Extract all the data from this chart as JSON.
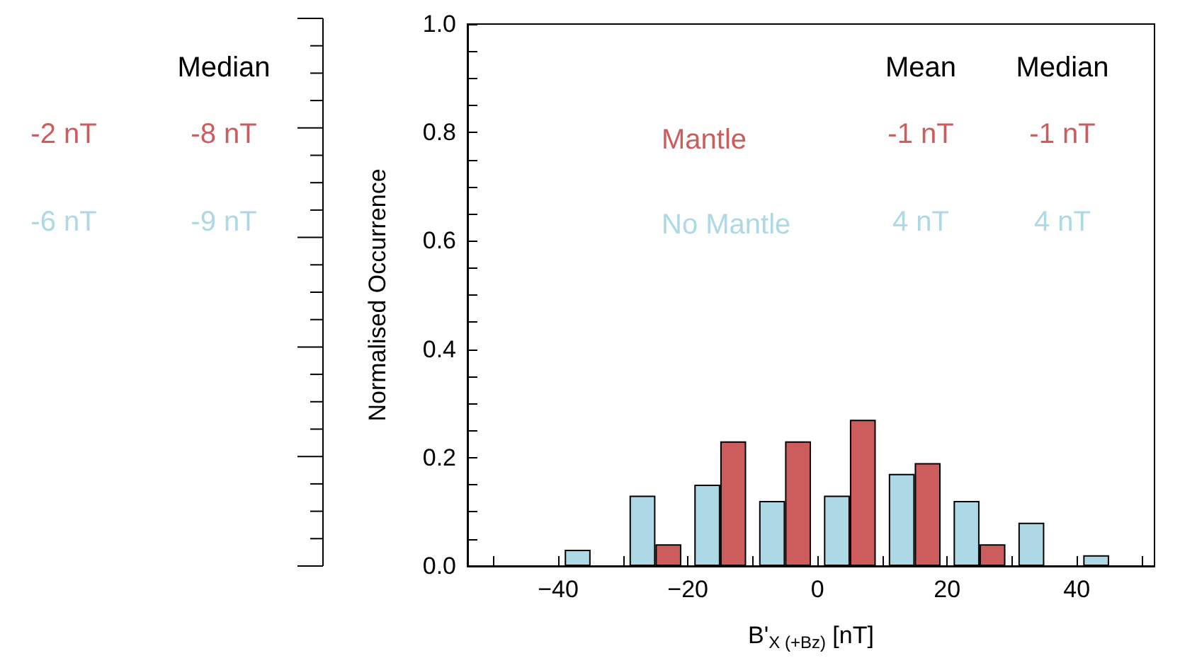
{
  "chart_data": [
    {
      "type": "other",
      "annotations": [
        "Median",
        "-2 nT",
        "-8 nT",
        "-6 nT",
        "-9 nT"
      ]
    },
    {
      "type": "bar",
      "xlabel": "B'$_{X (+Bz)}$ [nT]",
      "ylabel": "Normalised Occurrence",
      "x": [
        -35,
        -25,
        -15,
        -5,
        5,
        15,
        25,
        35,
        45
      ],
      "series": [
        {
          "name": "No Mantle",
          "color": "#add8e6",
          "values": [
            0.03,
            0.13,
            0.15,
            0.12,
            0.13,
            0.17,
            0.12,
            0.08,
            0.02
          ]
        },
        {
          "name": "Mantle",
          "color": "#cd5c5c",
          "values": [
            null,
            0.04,
            0.23,
            0.23,
            0.27,
            0.19,
            0.04,
            null,
            null
          ]
        }
      ],
      "xlim": [
        -54,
        52
      ],
      "xticks": [
        {
          "value": -50,
          "label": null
        },
        {
          "value": -40,
          "label": "−40"
        },
        {
          "value": -30,
          "label": null
        },
        {
          "value": -20,
          "label": "−20"
        },
        {
          "value": -10,
          "label": null
        },
        0,
        {
          "value": 10,
          "label": null
        },
        20,
        {
          "value": 30,
          "label": null
        },
        40,
        {
          "value": 50,
          "label": null
        }
      ],
      "ylim": [
        0,
        1
      ],
      "yticks": [
        {
          "value": 0,
          "label": "0.0"
        },
        {
          "value": 0.05,
          "label": null
        },
        {
          "value": 0.1,
          "label": null
        },
        {
          "value": 0.15,
          "label": null
        },
        {
          "value": 0.2,
          "label": "0.2"
        },
        {
          "value": 0.25,
          "label": null
        },
        {
          "value": 0.3,
          "label": null
        },
        {
          "value": 0.35,
          "label": null
        },
        {
          "value": 0.4,
          "label": "0.4"
        },
        {
          "value": 0.45,
          "label": null
        },
        {
          "value": 0.5,
          "label": null
        },
        {
          "value": 0.55,
          "label": null
        },
        {
          "value": 0.6,
          "label": "0.6"
        },
        {
          "value": 0.65,
          "label": null
        },
        {
          "value": 0.7,
          "label": null
        },
        {
          "value": 0.75,
          "label": null
        },
        {
          "value": 0.8,
          "label": "0.8"
        },
        {
          "value": 0.85,
          "label": null
        },
        {
          "value": 0.9,
          "label": null
        },
        {
          "value": 0.95,
          "label": null
        },
        {
          "value": 1,
          "label": "1.0"
        }
      ],
      "legend": "top",
      "annotations": [
        "Mean",
        "Median",
        "-1 nT",
        "-1 nT",
        "4 nT",
        "4 nT"
      ]
    }
  ]
}
